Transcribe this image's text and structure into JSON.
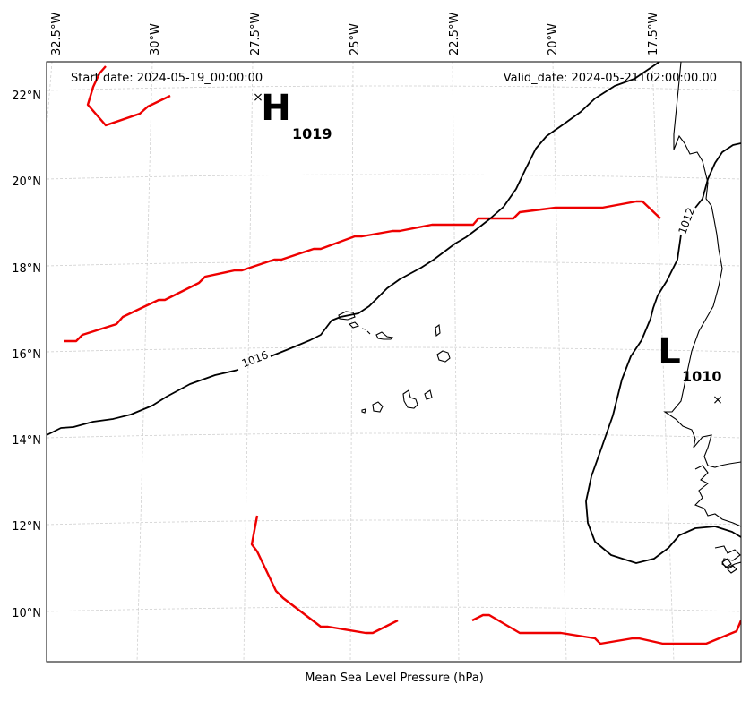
{
  "header": {
    "start_date": "Start date: 2024-05-19_00:00:00",
    "valid_date": "Valid_date: 2024-05-21T02:00:00.00"
  },
  "footer": {
    "caption": "Mean Sea Level Pressure (hPa)"
  },
  "axes": {
    "lon_labels": [
      "32.5°W",
      "30°W",
      "27.5°W",
      "25°W",
      "22.5°W",
      "20°W",
      "17.5°W"
    ],
    "lat_labels": [
      "22°N",
      "20°N",
      "18°N",
      "16°N",
      "14°N",
      "12°N",
      "10°N"
    ],
    "lon_range": [
      -33,
      -15.5
    ],
    "lat_range": [
      9,
      22.8
    ],
    "gridlines": true
  },
  "pressure_centers": [
    {
      "type": "high",
      "letter": "H",
      "value": "1019",
      "lon": -27.5,
      "lat": 22.0
    },
    {
      "type": "low",
      "letter": "L",
      "value": "1010",
      "lon": -15.9,
      "lat": 14.9
    }
  ],
  "isobars": [
    {
      "label": "1016"
    },
    {
      "label": "1012"
    }
  ],
  "colors": {
    "isobar": "#000000",
    "highlight_contour": "#ee0000",
    "coastline": "#000000",
    "grid": "#cccccc"
  }
}
